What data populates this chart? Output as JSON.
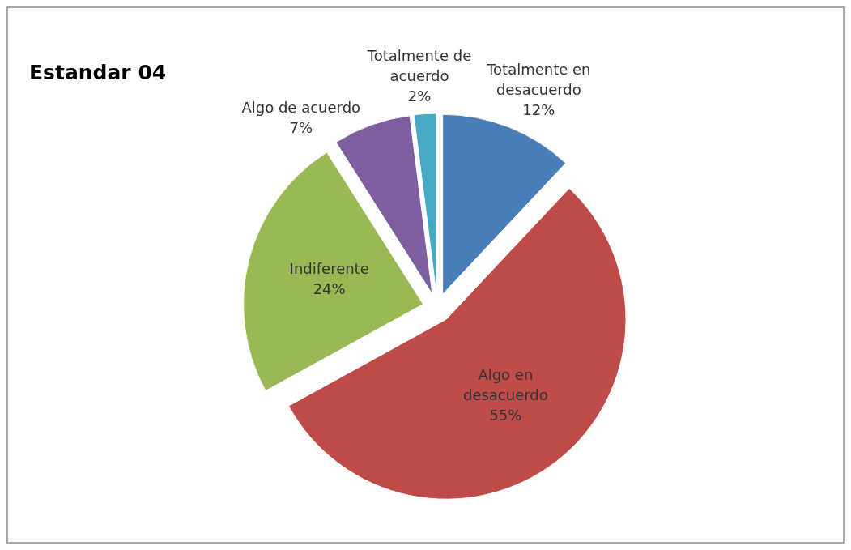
{
  "chart_data": {
    "type": "pie",
    "title": "Estandar 04",
    "categories": [
      "Totalmente en desacuerdo",
      "Algo en desacuerdo",
      "Indiferente",
      "Algo de acuerdo",
      "Totalmente de acuerdo"
    ],
    "values": [
      12,
      55,
      24,
      7,
      2
    ],
    "value_labels": [
      "12%",
      "55%",
      "24%",
      "7%",
      "2%"
    ],
    "colors": [
      "#4a7ebb",
      "#be4b48",
      "#98b954",
      "#7d5fa0",
      "#46aac5"
    ]
  }
}
